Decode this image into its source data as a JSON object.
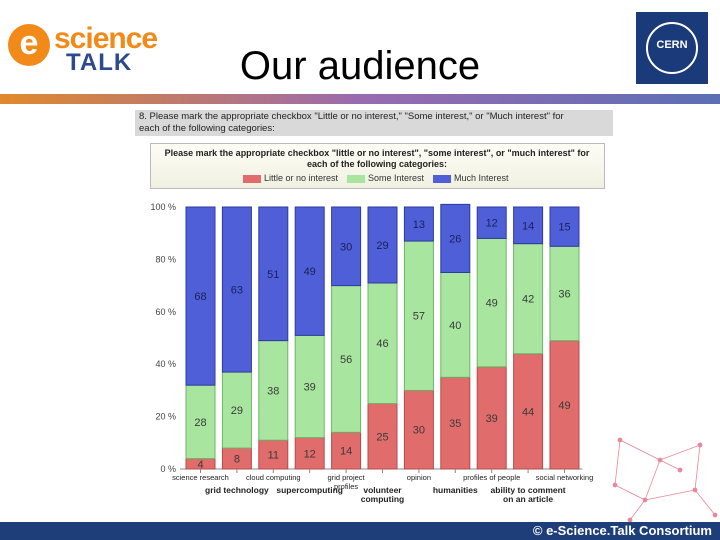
{
  "slide": {
    "title": "Our audience",
    "copyright": "© e-Science.Talk Consortium"
  },
  "logos": {
    "escience_e": "e",
    "escience_word": "science",
    "talk_word": "TALK",
    "cern_text": "CERN"
  },
  "question": {
    "header_line1": "8. Please mark the appropriate checkbox \"Little or no interest,\" \"Some interest,\" or \"Much interest\" for",
    "header_line2": "each of the following categories:",
    "instruction": "Please mark the appropriate checkbox \"little or no interest\", \"some interest\", or \"much interest\" for each of the following categories:"
  },
  "colors": {
    "little": "#e06c6c",
    "some": "#a8e6a0",
    "much": "#4f5fd8"
  },
  "chart_data": {
    "type": "bar",
    "stacked": true,
    "normalized": true,
    "categories": [
      "science research",
      "grid technology",
      "cloud computing",
      "supercomputing",
      "grid project profiles",
      "volunteer computing",
      "opinion",
      "humanities",
      "profiles of people",
      "ability to comment on an article",
      "social networking"
    ],
    "series": [
      {
        "name": "Little or no interest",
        "values": [
          4,
          8,
          11,
          12,
          14,
          25,
          30,
          35,
          39,
          44,
          49
        ]
      },
      {
        "name": "Some Interest",
        "values": [
          28,
          29,
          38,
          39,
          56,
          46,
          57,
          40,
          49,
          42,
          36
        ]
      },
      {
        "name": "Much Interest",
        "values": [
          68,
          63,
          51,
          49,
          30,
          29,
          13,
          26,
          12,
          14,
          15
        ]
      }
    ],
    "y_ticks": [
      "0 %",
      "20 %",
      "40 %",
      "60 %",
      "80 %",
      "100 %"
    ],
    "ylim": [
      0,
      100
    ],
    "legend_position": "top"
  }
}
